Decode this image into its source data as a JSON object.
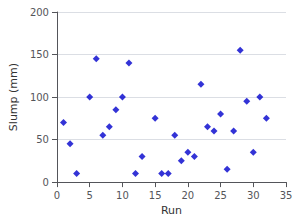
{
  "chart_data": {
    "type": "scatter",
    "x": [
      1,
      2,
      3,
      5,
      6,
      7,
      8,
      9,
      10,
      11,
      12,
      13,
      15,
      16,
      17,
      18,
      19,
      20,
      21,
      22,
      23,
      24,
      25,
      26,
      27,
      28,
      29,
      30,
      31,
      32
    ],
    "values": [
      70,
      45,
      10,
      100,
      145,
      55,
      65,
      85,
      100,
      140,
      10,
      30,
      75,
      10,
      10,
      55,
      25,
      35,
      30,
      115,
      65,
      60,
      80,
      15,
      60,
      155,
      95,
      35,
      100,
      75
    ],
    "xlabel": "Run",
    "ylabel": "Slump (mm)",
    "xlim": [
      0,
      35
    ],
    "xticks": [
      0,
      5,
      10,
      15,
      20,
      25,
      30,
      35
    ],
    "ylim": [
      0,
      200
    ],
    "yticks": [
      0,
      50,
      100,
      150,
      200
    ],
    "color": "#0000CC",
    "marker": "diamond",
    "grid": true
  }
}
